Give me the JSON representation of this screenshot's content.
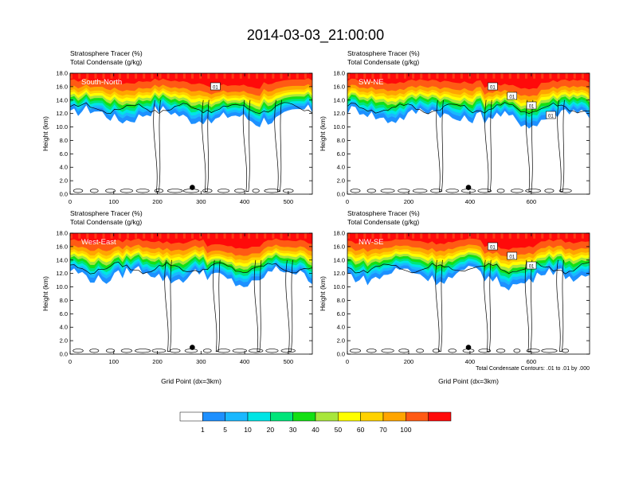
{
  "title": "2014-03-03_21:00:00",
  "colors": [
    "#ffffff",
    "#1e90ff",
    "#1ab8ff",
    "#00e5e5",
    "#00e57a",
    "#14e014",
    "#a8e63c",
    "#ffff00",
    "#ffd200",
    "#ffa500",
    "#ff5a14",
    "#ff0a0a"
  ],
  "chart_data": [
    {
      "type": "heatmap",
      "name": "South-North",
      "title_line1": "Stratosphere Tracer   (%)",
      "title_line2": "Total Condensate   (g/kg)",
      "xlabel": "",
      "ylabel": "Height (km)",
      "xlim": [
        0,
        555
      ],
      "ylim": [
        0,
        18
      ],
      "xticks": [
        "0",
        "100",
        "200",
        "300",
        "400",
        "500"
      ],
      "yticks": [
        "0.0",
        "2.0",
        "4.0",
        "6.0",
        "8.0",
        "10.0",
        "12.0",
        "14.0",
        "16.0",
        "18.0"
      ],
      "marker_x": 280,
      "marker_y": 1.0,
      "contour_labels": [
        "01"
      ],
      "footnote": ""
    },
    {
      "type": "heatmap",
      "name": "SW-NE",
      "title_line1": "Stratosphere Tracer   (%)",
      "title_line2": "Total Condensate   (g/kg)",
      "xlabel": "",
      "ylabel": "Height (km)",
      "xlim": [
        0,
        790
      ],
      "ylim": [
        0,
        18
      ],
      "xticks": [
        "0",
        "200",
        "400",
        "600"
      ],
      "yticks": [
        "0.0",
        "2.0",
        "4.0",
        "6.0",
        "8.0",
        "10.0",
        "12.0",
        "14.0",
        "16.0",
        "18.0"
      ],
      "marker_x": 395,
      "marker_y": 1.0,
      "contour_labels": [
        "01",
        "01",
        "01",
        "01"
      ],
      "footnote": ""
    },
    {
      "type": "heatmap",
      "name": "West-East",
      "title_line1": "Stratosphere Tracer   (%)",
      "title_line2": "Total Condensate   (g/kg)",
      "xlabel": "Grid Point (dx=3km)",
      "ylabel": "Height (km)",
      "xlim": [
        0,
        555
      ],
      "ylim": [
        0,
        18
      ],
      "xticks": [
        "0",
        "100",
        "200",
        "300",
        "400",
        "500"
      ],
      "yticks": [
        "0.0",
        "2.0",
        "4.0",
        "6.0",
        "8.0",
        "10.0",
        "12.0",
        "14.0",
        "16.0",
        "18.0"
      ],
      "marker_x": 280,
      "marker_y": 1.0,
      "contour_labels": [],
      "footnote": ""
    },
    {
      "type": "heatmap",
      "name": "NW-SE",
      "title_line1": "Stratosphere Tracer   (%)",
      "title_line2": "Total Condensate   (g/kg)",
      "xlabel": "Grid Point (dx=3km)",
      "ylabel": "Height (km)",
      "xlim": [
        0,
        790
      ],
      "ylim": [
        0,
        18
      ],
      "xticks": [
        "0",
        "200",
        "400",
        "600"
      ],
      "yticks": [
        "0.0",
        "2.0",
        "4.0",
        "6.0",
        "8.0",
        "10.0",
        "12.0",
        "14.0",
        "16.0",
        "18.0"
      ],
      "marker_x": 395,
      "marker_y": 1.0,
      "contour_labels": [
        "01",
        "01",
        "01"
      ],
      "footnote": "Total Condensate Contours: .01 to .01 by .000"
    }
  ],
  "colorbar": {
    "labels": [
      "1",
      "5",
      "10",
      "20",
      "30",
      "40",
      "50",
      "60",
      "70",
      "100"
    ]
  }
}
